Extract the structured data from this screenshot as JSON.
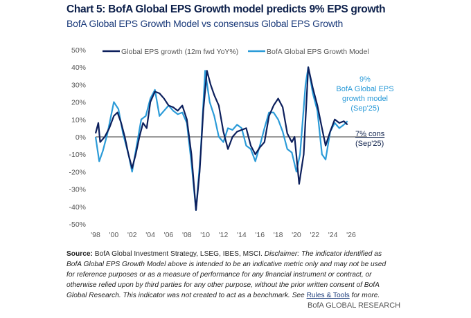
{
  "chart_data": {
    "type": "line",
    "title": "Chart 5: BofA Global EPS Growth model predicts 9% EPS growth",
    "subtitle": "BofA Global EPS Growth Model vs consensus Global EPS Growth",
    "xlabel": "",
    "ylabel": "",
    "ylim": [
      -50,
      50
    ],
    "yticks": [
      "50%",
      "40%",
      "30%",
      "20%",
      "10%",
      "0%",
      "-10%",
      "-20%",
      "-30%",
      "-40%",
      "-50%"
    ],
    "xlim": [
      1998,
      2026
    ],
    "xticks": [
      "'98",
      "'00",
      "'02",
      "'04",
      "'06",
      "'08",
      "'10",
      "'12",
      "'14",
      "'16",
      "'18",
      "'20",
      "'22",
      "'24",
      "'26"
    ],
    "grid": false,
    "legend": "top",
    "series": [
      {
        "name": "Global EPS growth (12m fwd YoY%)",
        "color": "#0c1f5c",
        "x": [
          1998.0,
          1998.3,
          1998.5,
          1999.0,
          1999.5,
          2000.0,
          2000.4,
          2000.8,
          2001.2,
          2001.6,
          2002.0,
          2002.4,
          2002.8,
          2003.2,
          2003.6,
          2004.0,
          2004.5,
          2005.0,
          2005.5,
          2006.0,
          2006.5,
          2007.0,
          2007.5,
          2008.0,
          2008.5,
          2009.0,
          2009.4,
          2009.8,
          2010.2,
          2010.6,
          2011.0,
          2011.5,
          2012.0,
          2012.5,
          2013.0,
          2013.5,
          2014.0,
          2014.5,
          2015.0,
          2015.5,
          2016.0,
          2016.5,
          2017.0,
          2017.5,
          2018.0,
          2018.5,
          2019.0,
          2019.5,
          2019.8,
          2020.3,
          2020.8,
          2021.3,
          2021.8,
          2022.3,
          2022.8,
          2023.2,
          2023.7,
          2024.2,
          2024.7,
          2025.2,
          2025.6
        ],
        "y": [
          2,
          8,
          -3,
          0,
          5,
          12,
          14,
          8,
          0,
          -10,
          -18,
          -10,
          0,
          8,
          5,
          20,
          26,
          25,
          22,
          18,
          17,
          15,
          18,
          10,
          -10,
          -42,
          -20,
          15,
          38,
          30,
          24,
          18,
          3,
          -7,
          0,
          3,
          4,
          5,
          -5,
          -10,
          -6,
          -3,
          12,
          18,
          22,
          17,
          2,
          -3,
          0,
          -27,
          -10,
          40,
          28,
          18,
          5,
          -5,
          3,
          10,
          8,
          9,
          7
        ]
      },
      {
        "name": "BofA Global EPS Growth Model",
        "color": "#2b9bd8",
        "x": [
          1998.0,
          1998.4,
          1998.8,
          1999.3,
          2000.0,
          2000.5,
          2001.0,
          2001.6,
          2002.0,
          2002.5,
          2003.0,
          2003.5,
          2004.0,
          2004.5,
          2005.0,
          2005.5,
          2006.0,
          2006.5,
          2007.0,
          2007.5,
          2008.0,
          2008.5,
          2009.0,
          2009.5,
          2010.0,
          2010.5,
          2011.0,
          2011.5,
          2012.0,
          2012.5,
          2013.0,
          2013.5,
          2014.0,
          2014.5,
          2015.0,
          2015.5,
          2016.0,
          2016.5,
          2017.0,
          2017.5,
          2018.0,
          2018.5,
          2019.0,
          2019.5,
          2020.0,
          2020.4,
          2021.0,
          2021.3,
          2021.8,
          2022.3,
          2022.8,
          2023.2,
          2023.7,
          2024.2,
          2024.7,
          2025.2,
          2025.6
        ],
        "y": [
          0,
          -14,
          -8,
          2,
          20,
          16,
          2,
          -10,
          -20,
          -5,
          10,
          12,
          22,
          27,
          12,
          15,
          18,
          15,
          13,
          14,
          8,
          -15,
          -42,
          -10,
          38,
          20,
          12,
          0,
          -3,
          5,
          4,
          7,
          5,
          -5,
          -7,
          -14,
          -5,
          5,
          14,
          14,
          10,
          3,
          -7,
          -9,
          -20,
          -10,
          30,
          40,
          25,
          15,
          -10,
          -13,
          3,
          8,
          5,
          7,
          9
        ]
      }
    ],
    "annotations": [
      {
        "lines": [
          "9%",
          "BofA Global EPS",
          "growth model",
          "(Sep'25)"
        ],
        "color": "#2b9bd8"
      },
      {
        "lines": [
          "7% cons",
          "(Sep'25)"
        ],
        "color": "#0c1f4a"
      }
    ]
  },
  "footer": {
    "source_label": "Source:",
    "source_text": " BofA Global Investment Strategy, LSEG, IBES, MSCI. ",
    "disclaimer": "Disclaimer: The indicator identified as BofA Global EPS Growth Model above is intended to be an indicative metric only and may not be used for reference purposes or as a measure of performance for any financial instrument or contract, or otherwise relied upon by third parties for any other purpose, without the prior written consent of BofA Global Research. This indicator was not created to act as a benchmark. See ",
    "link": "Rules & Tools",
    "end": " for more.",
    "brand": "BofA GLOBAL RESEARCH"
  }
}
